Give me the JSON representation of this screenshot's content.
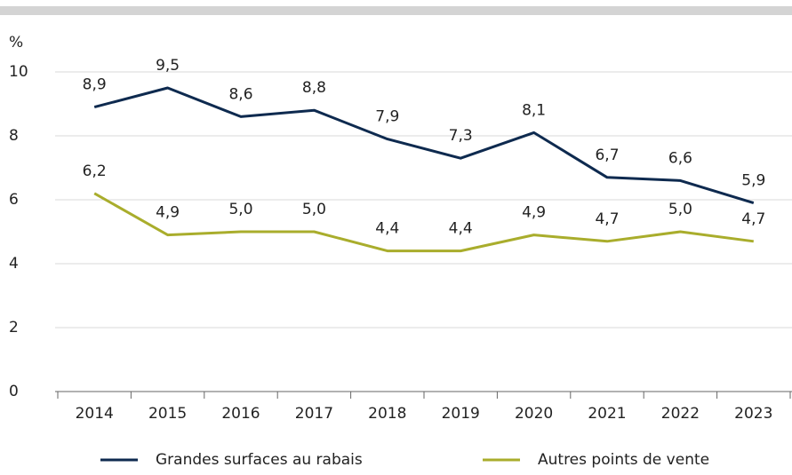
{
  "chart_data": {
    "type": "line",
    "y_label": "%",
    "categories": [
      "2014",
      "2015",
      "2016",
      "2017",
      "2018",
      "2019",
      "2020",
      "2021",
      "2022",
      "2023"
    ],
    "series": [
      {
        "name": "Grandes surfaces au rabais",
        "color": "#0e2a4f",
        "values": [
          8.9,
          9.5,
          8.6,
          8.8,
          7.9,
          7.3,
          8.1,
          6.7,
          6.6,
          5.9
        ],
        "value_labels": [
          "8,9",
          "9,5",
          "8,6",
          "8,8",
          "7,9",
          "7,3",
          "8,1",
          "6,7",
          "6,6",
          "5,9"
        ]
      },
      {
        "name": "Autres points de vente",
        "color": "#a9ad2c",
        "values": [
          6.2,
          4.9,
          5.0,
          5.0,
          4.4,
          4.4,
          4.9,
          4.7,
          5.0,
          4.7
        ],
        "value_labels": [
          "6,2",
          "4,9",
          "5,0",
          "5,0",
          "4,4",
          "4,4",
          "4,9",
          "4,7",
          "5,0",
          "4,7"
        ]
      }
    ],
    "ylim": [
      0,
      10
    ],
    "yticks": [
      0,
      2,
      4,
      6,
      8,
      10
    ],
    "grid": true,
    "legend": "bottom"
  }
}
